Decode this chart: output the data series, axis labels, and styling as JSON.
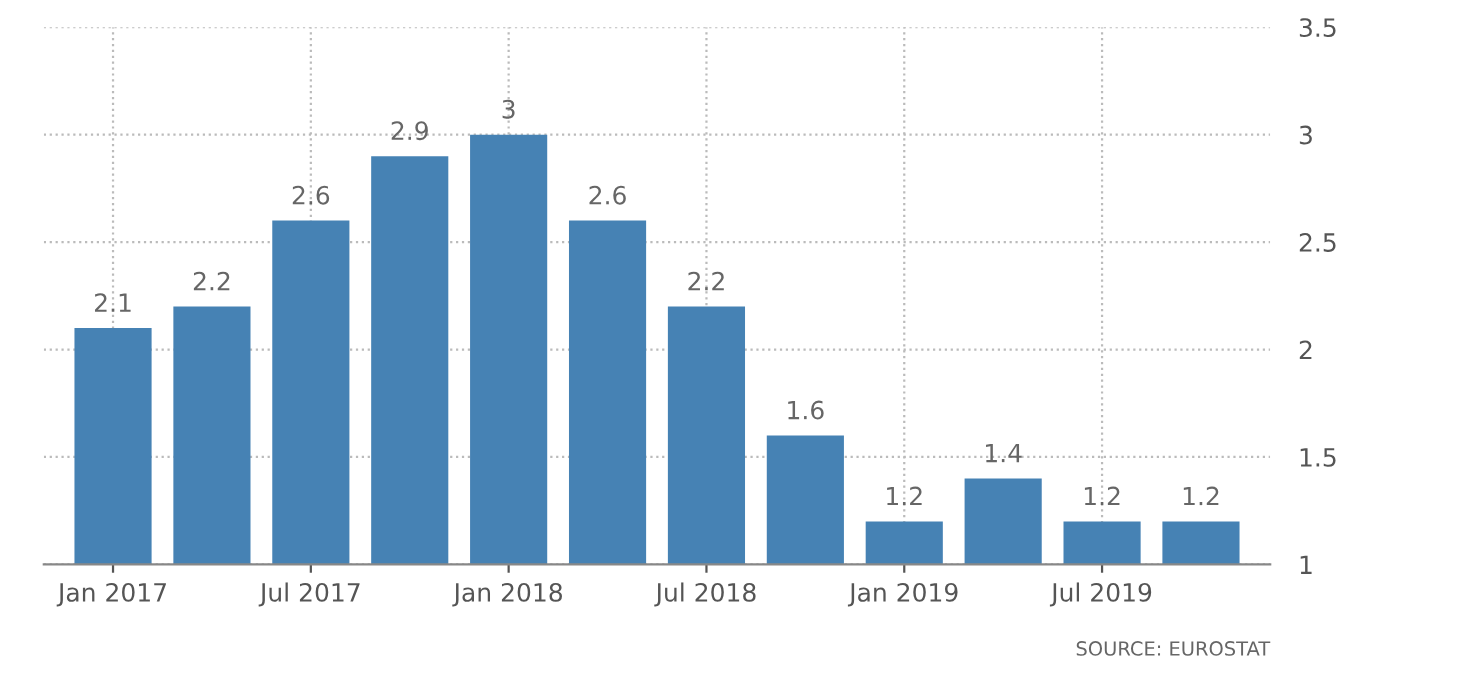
{
  "chart_data": {
    "type": "bar",
    "categories": [
      "Jan 2017",
      null,
      "Jul 2017",
      null,
      "Jan 2018",
      null,
      "Jul 2018",
      null,
      "Jan 2019",
      null,
      "Jul 2019",
      null
    ],
    "values": [
      2.1,
      2.2,
      2.6,
      2.9,
      3,
      2.6,
      2.2,
      1.6,
      1.2,
      1.4,
      1.2,
      1.2
    ],
    "color": "#4682b4",
    "ylim": [
      1,
      3.5
    ],
    "yticks": [
      1,
      1.5,
      2,
      2.5,
      3,
      3.5
    ],
    "grid": true,
    "data_labels": true,
    "annotations": [
      "SOURCE: EUROSTAT"
    ]
  }
}
